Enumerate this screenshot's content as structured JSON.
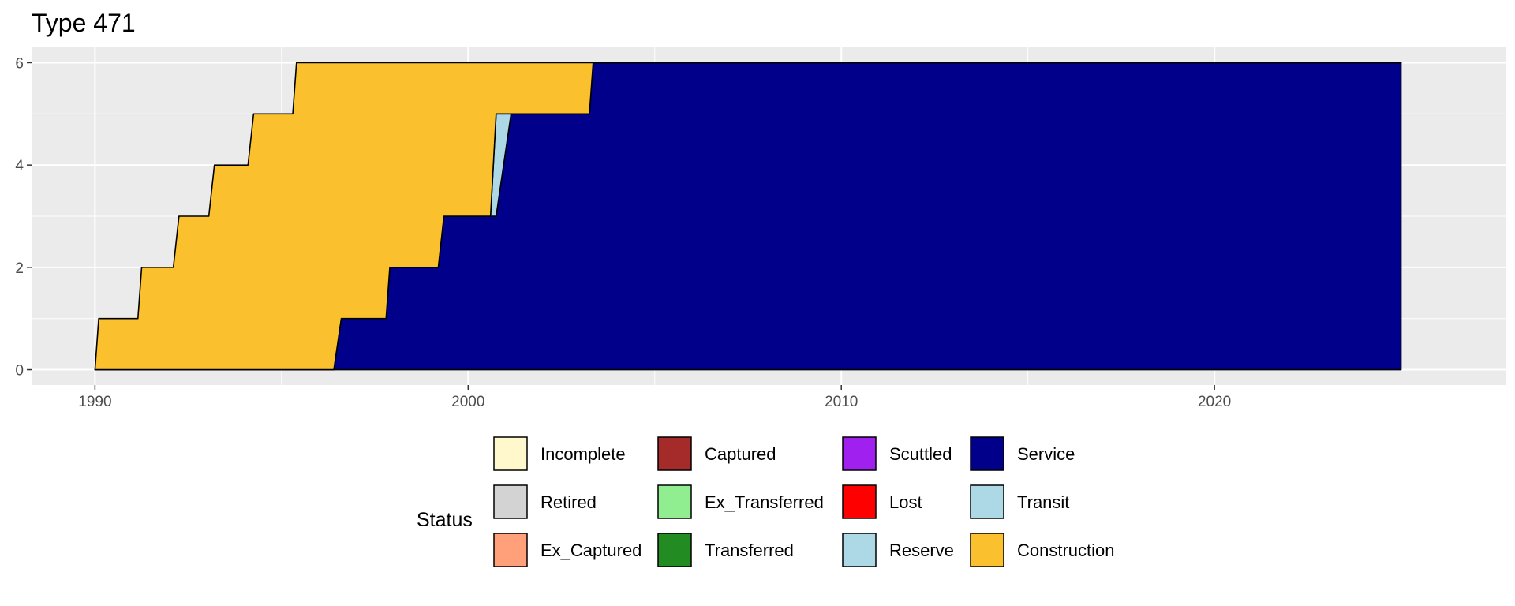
{
  "chart_data": {
    "type": "area",
    "title": "Type 471",
    "xlabel": "",
    "ylabel": "",
    "xlim": [
      1988.3,
      2027.8
    ],
    "ylim": [
      -0.3,
      6.3
    ],
    "x_ticks": [
      1990,
      2000,
      2010,
      2020
    ],
    "y_ticks": [
      0,
      2,
      4,
      6
    ],
    "grid": true,
    "stacked": true,
    "legend": {
      "title": "Status",
      "placement": "bottom",
      "entries": [
        {
          "label": "Incomplete",
          "color": "#FFF8CC"
        },
        {
          "label": "Retired",
          "color": "#D3D3D3"
        },
        {
          "label": "Ex_Captured",
          "color": "#FFA07A"
        },
        {
          "label": "Captured",
          "color": "#A52A2A"
        },
        {
          "label": "Ex_Transferred",
          "color": "#90EE90"
        },
        {
          "label": "Transferred",
          "color": "#228B22"
        },
        {
          "label": "Scuttled",
          "color": "#A020F0"
        },
        {
          "label": "Lost",
          "color": "#FF0000"
        },
        {
          "label": "Reserve",
          "color": "#ADD8E6"
        },
        {
          "label": "Service",
          "color": "#00008B"
        },
        {
          "label": "Transit",
          "color": "#ADD8E6"
        },
        {
          "label": "Construction",
          "color": "#FBC02D"
        }
      ]
    },
    "series": [
      {
        "name": "Service",
        "color": "#00008B",
        "points": [
          [
            1990.0,
            0
          ],
          [
            1990.1,
            0
          ],
          [
            1991.15,
            0
          ],
          [
            1991.25,
            0
          ],
          [
            1992.1,
            0
          ],
          [
            1992.25,
            0
          ],
          [
            1993.05,
            0
          ],
          [
            1993.2,
            0
          ],
          [
            1994.1,
            0
          ],
          [
            1994.25,
            0
          ],
          [
            1995.3,
            0
          ],
          [
            1995.4,
            0
          ],
          [
            1996.4,
            0
          ],
          [
            1996.6,
            1
          ],
          [
            1997.8,
            1
          ],
          [
            1997.9,
            2
          ],
          [
            1999.2,
            2
          ],
          [
            1999.35,
            3
          ],
          [
            2000.6,
            3
          ],
          [
            2000.75,
            3
          ],
          [
            2001.15,
            5
          ],
          [
            2003.25,
            5
          ],
          [
            2003.35,
            6
          ],
          [
            2025.0,
            6
          ]
        ]
      },
      {
        "name": "Transit",
        "color": "#ADD8E6",
        "points": [
          [
            1990.0,
            0
          ],
          [
            1990.1,
            0
          ],
          [
            1991.15,
            0
          ],
          [
            1991.25,
            0
          ],
          [
            1992.1,
            0
          ],
          [
            1992.25,
            0
          ],
          [
            1993.05,
            0
          ],
          [
            1993.2,
            0
          ],
          [
            1994.1,
            0
          ],
          [
            1994.25,
            0
          ],
          [
            1995.3,
            0
          ],
          [
            1995.4,
            0
          ],
          [
            1996.4,
            0
          ],
          [
            1996.6,
            0
          ],
          [
            1997.8,
            0
          ],
          [
            1997.9,
            0
          ],
          [
            1999.2,
            0
          ],
          [
            1999.35,
            0
          ],
          [
            2000.6,
            0
          ],
          [
            2000.75,
            2
          ],
          [
            2001.15,
            0
          ],
          [
            2003.25,
            0
          ],
          [
            2003.35,
            0
          ],
          [
            2025.0,
            0
          ]
        ]
      },
      {
        "name": "Construction",
        "color": "#FBC02D",
        "points": [
          [
            1990.0,
            0
          ],
          [
            1990.1,
            1
          ],
          [
            1991.15,
            1
          ],
          [
            1991.25,
            2
          ],
          [
            1992.1,
            2
          ],
          [
            1992.25,
            3
          ],
          [
            1993.05,
            3
          ],
          [
            1993.2,
            4
          ],
          [
            1994.1,
            4
          ],
          [
            1994.25,
            5
          ],
          [
            1995.3,
            5
          ],
          [
            1995.4,
            6
          ],
          [
            1996.4,
            6
          ],
          [
            1996.6,
            5
          ],
          [
            1997.8,
            5
          ],
          [
            1997.9,
            4
          ],
          [
            1999.2,
            4
          ],
          [
            1999.35,
            3
          ],
          [
            2000.6,
            3
          ],
          [
            2000.75,
            1
          ],
          [
            2001.15,
            1
          ],
          [
            2003.25,
            1
          ],
          [
            2003.35,
            0
          ],
          [
            2025.0,
            0
          ]
        ]
      }
    ]
  }
}
